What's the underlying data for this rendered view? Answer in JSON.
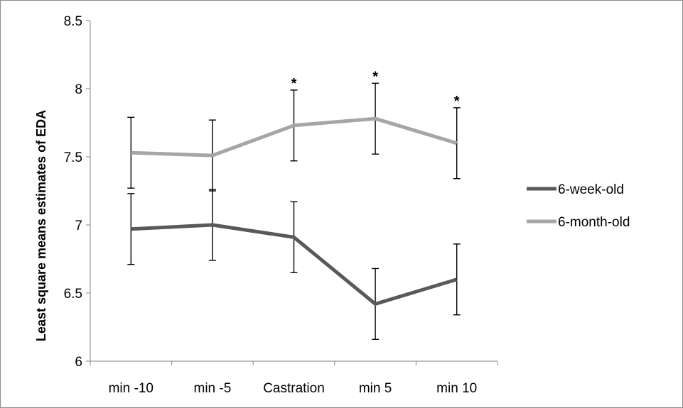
{
  "chart_data": {
    "type": "line",
    "title": "",
    "xlabel": "",
    "ylabel": "Least square means estimates of EDA",
    "categories": [
      "min -10",
      "min -5",
      "Castration",
      "min 5",
      "min 10"
    ],
    "ylim": [
      6,
      8.5
    ],
    "yticks": [
      "6",
      "6.5",
      "7",
      "7.5",
      "8",
      "8.5"
    ],
    "grid": false,
    "legend_position": "right",
    "series": [
      {
        "name": "6-week-old",
        "color": "#595959",
        "values": [
          6.97,
          7.0,
          6.91,
          6.42,
          6.6
        ],
        "error": [
          0.26,
          0.26,
          0.26,
          0.26,
          0.26
        ]
      },
      {
        "name": "6-month-old",
        "color": "#a6a6a6",
        "values": [
          7.53,
          7.51,
          7.73,
          7.78,
          7.6
        ],
        "error": [
          0.26,
          0.26,
          0.26,
          0.26,
          0.26
        ]
      }
    ],
    "significance": {
      "symbol": "*",
      "categories": [
        "Castration",
        "min 5",
        "min 10"
      ]
    }
  }
}
